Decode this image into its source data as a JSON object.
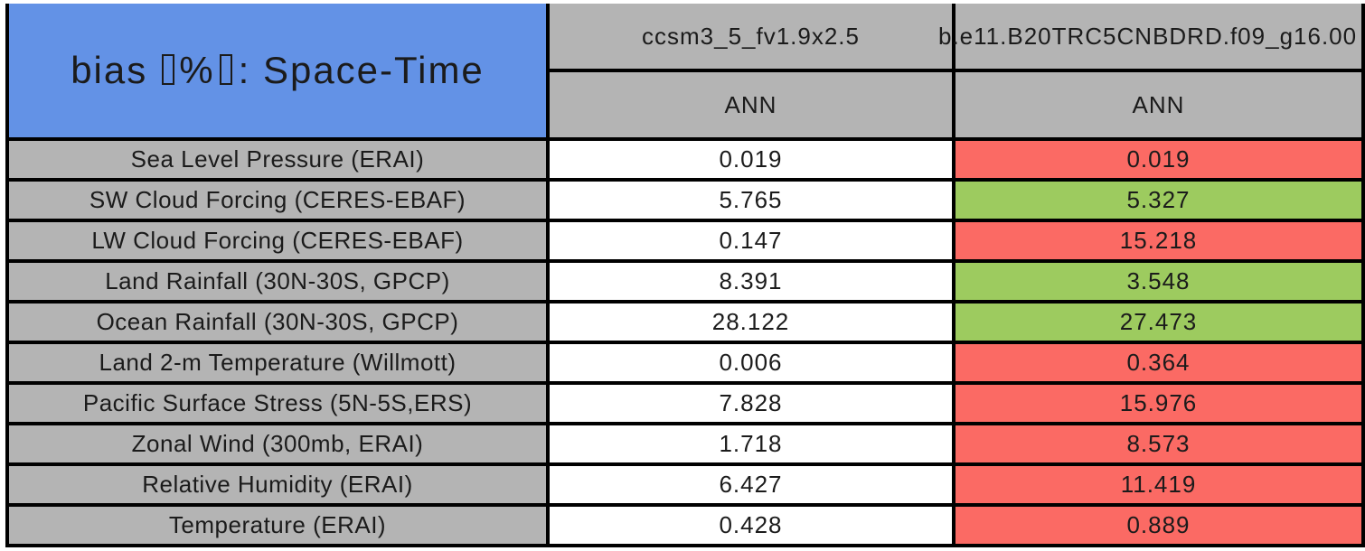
{
  "colors": {
    "page_bg": "#FFFFFF",
    "title_bg": "#6392E6",
    "header_bg": "#B4B4B4",
    "value_bg": "#FFFFFF",
    "worse_bg": "#FB6A64",
    "better_bg": "#9DCB5F",
    "grid_border": "#000000",
    "text": "#1B1B1B"
  },
  "chart_data": {
    "type": "table",
    "title": "bias [%]: Space-Time",
    "title_parts": {
      "prefix": "bias",
      "unit": "%",
      "suffix": ": Space-Time"
    },
    "model_columns": [
      "ccsm3_5_fv1.9x2.5",
      "b.e11.B20TRC5CNBDRD.f09_g16.00"
    ],
    "season_labels": [
      "ANN",
      "ANN"
    ],
    "rows": [
      {
        "variable": "Sea Level Pressure (ERAI)",
        "model1": "0.019",
        "model2": "0.019",
        "model1_value": 0.019,
        "model2_value": 0.019,
        "model2_status": "worse"
      },
      {
        "variable": "SW Cloud Forcing (CERES-EBAF)",
        "model1": "5.765",
        "model2": "5.327",
        "model1_value": 5.765,
        "model2_value": 5.327,
        "model2_status": "better"
      },
      {
        "variable": "LW Cloud Forcing (CERES-EBAF)",
        "model1": "0.147",
        "model2": "15.218",
        "model1_value": 0.147,
        "model2_value": 15.218,
        "model2_status": "worse"
      },
      {
        "variable": "Land Rainfall (30N-30S, GPCP)",
        "model1": "8.391",
        "model2": "3.548",
        "model1_value": 8.391,
        "model2_value": 3.548,
        "model2_status": "better"
      },
      {
        "variable": "Ocean Rainfall (30N-30S, GPCP)",
        "model1": "28.122",
        "model2": "27.473",
        "model1_value": 28.122,
        "model2_value": 27.473,
        "model2_status": "better"
      },
      {
        "variable": "Land 2-m Temperature (Willmott)",
        "model1": "0.006",
        "model2": "0.364",
        "model1_value": 0.006,
        "model2_value": 0.364,
        "model2_status": "worse"
      },
      {
        "variable": "Pacific Surface Stress (5N-5S,ERS)",
        "model1": "7.828",
        "model2": "15.976",
        "model1_value": 7.828,
        "model2_value": 15.976,
        "model2_status": "worse"
      },
      {
        "variable": "Zonal Wind (300mb, ERAI)",
        "model1": "1.718",
        "model2": "8.573",
        "model1_value": 1.718,
        "model2_value": 8.573,
        "model2_status": "worse"
      },
      {
        "variable": "Relative Humidity (ERAI)",
        "model1": "6.427",
        "model2": "11.419",
        "model1_value": 6.427,
        "model2_value": 11.419,
        "model2_status": "worse"
      },
      {
        "variable": "Temperature (ERAI)",
        "model1": "0.428",
        "model2": "0.889",
        "model1_value": 0.428,
        "model2_value": 0.889,
        "model2_status": "worse"
      }
    ]
  }
}
